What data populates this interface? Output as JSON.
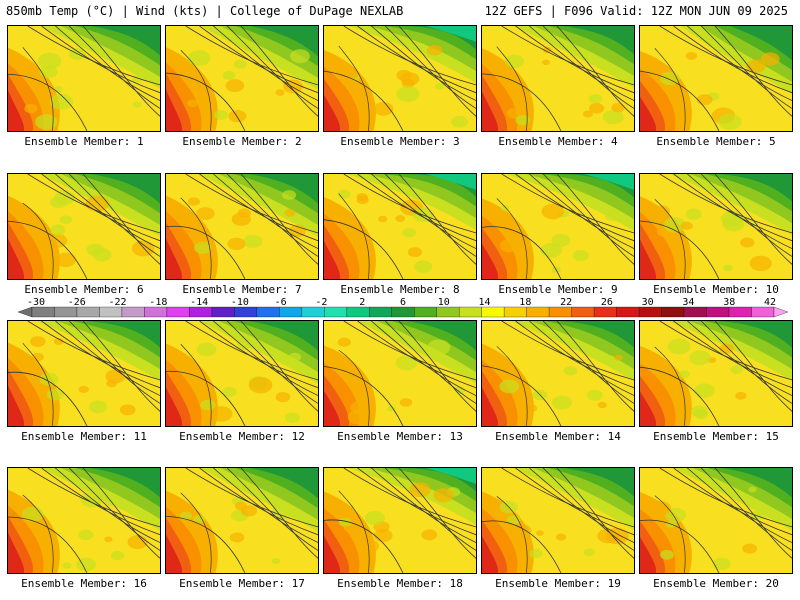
{
  "header": {
    "left": "850mb Temp (°C) | Wind (kts) | College of DuPage NEXLAB",
    "right": "12Z GEFS | F096 Valid: 12Z MON JUN 09 2025"
  },
  "member_label_prefix": "Ensemble Member: ",
  "members": [
    {
      "id": "1",
      "cool": 0.55,
      "warm": 0.8
    },
    {
      "id": "2",
      "cool": 0.5,
      "warm": 0.85
    },
    {
      "id": "3",
      "cool": 0.85,
      "warm": 0.55
    },
    {
      "id": "4",
      "cool": 0.6,
      "warm": 0.75
    },
    {
      "id": "5",
      "cool": 0.3,
      "warm": 0.45
    },
    {
      "id": "6",
      "cool": 0.55,
      "warm": 0.8
    },
    {
      "id": "7",
      "cool": 0.55,
      "warm": 0.8
    },
    {
      "id": "8",
      "cool": 0.9,
      "warm": 0.65
    },
    {
      "id": "9",
      "cool": 0.85,
      "warm": 0.5
    },
    {
      "id": "10",
      "cool": 0.65,
      "warm": 0.75
    },
    {
      "id": "11",
      "cool": 0.7,
      "warm": 0.8
    },
    {
      "id": "12",
      "cool": 0.55,
      "warm": 0.7
    },
    {
      "id": "13",
      "cool": 0.55,
      "warm": 0.5
    },
    {
      "id": "14",
      "cool": 0.7,
      "warm": 0.7
    },
    {
      "id": "15",
      "cool": 0.7,
      "warm": 0.45
    },
    {
      "id": "16",
      "cool": 0.55,
      "warm": 0.8
    },
    {
      "id": "17",
      "cool": 0.5,
      "warm": 0.7
    },
    {
      "id": "18",
      "cool": 0.85,
      "warm": 0.6
    },
    {
      "id": "19",
      "cool": 0.6,
      "warm": 0.6
    },
    {
      "id": "20",
      "cool": 0.55,
      "warm": 0.55
    }
  ],
  "colorbar": {
    "labels": [
      "-30",
      "-26",
      "-22",
      "-18",
      "-14",
      "-10",
      "-6",
      "-2",
      "2",
      "6",
      "10",
      "14",
      "18",
      "22",
      "26",
      "30",
      "34",
      "38",
      "42"
    ],
    "colors": [
      "#6e6e6e",
      "#808080",
      "#959595",
      "#a8a8a8",
      "#c0c0c0",
      "#c49ac8",
      "#d070d8",
      "#e040f0",
      "#b020e0",
      "#6020c8",
      "#3040d8",
      "#2070f0",
      "#10a8e8",
      "#20d0d8",
      "#20e0b0",
      "#10c880",
      "#10a858",
      "#209838",
      "#50b020",
      "#90c820",
      "#c8e020",
      "#f8f800",
      "#f8d000",
      "#f8b000",
      "#f89000",
      "#f06010",
      "#e83018",
      "#d81818",
      "#b81010",
      "#901010",
      "#a01050",
      "#c01080",
      "#e020b0",
      "#f060d8",
      "#f8a0f0"
    ]
  }
}
